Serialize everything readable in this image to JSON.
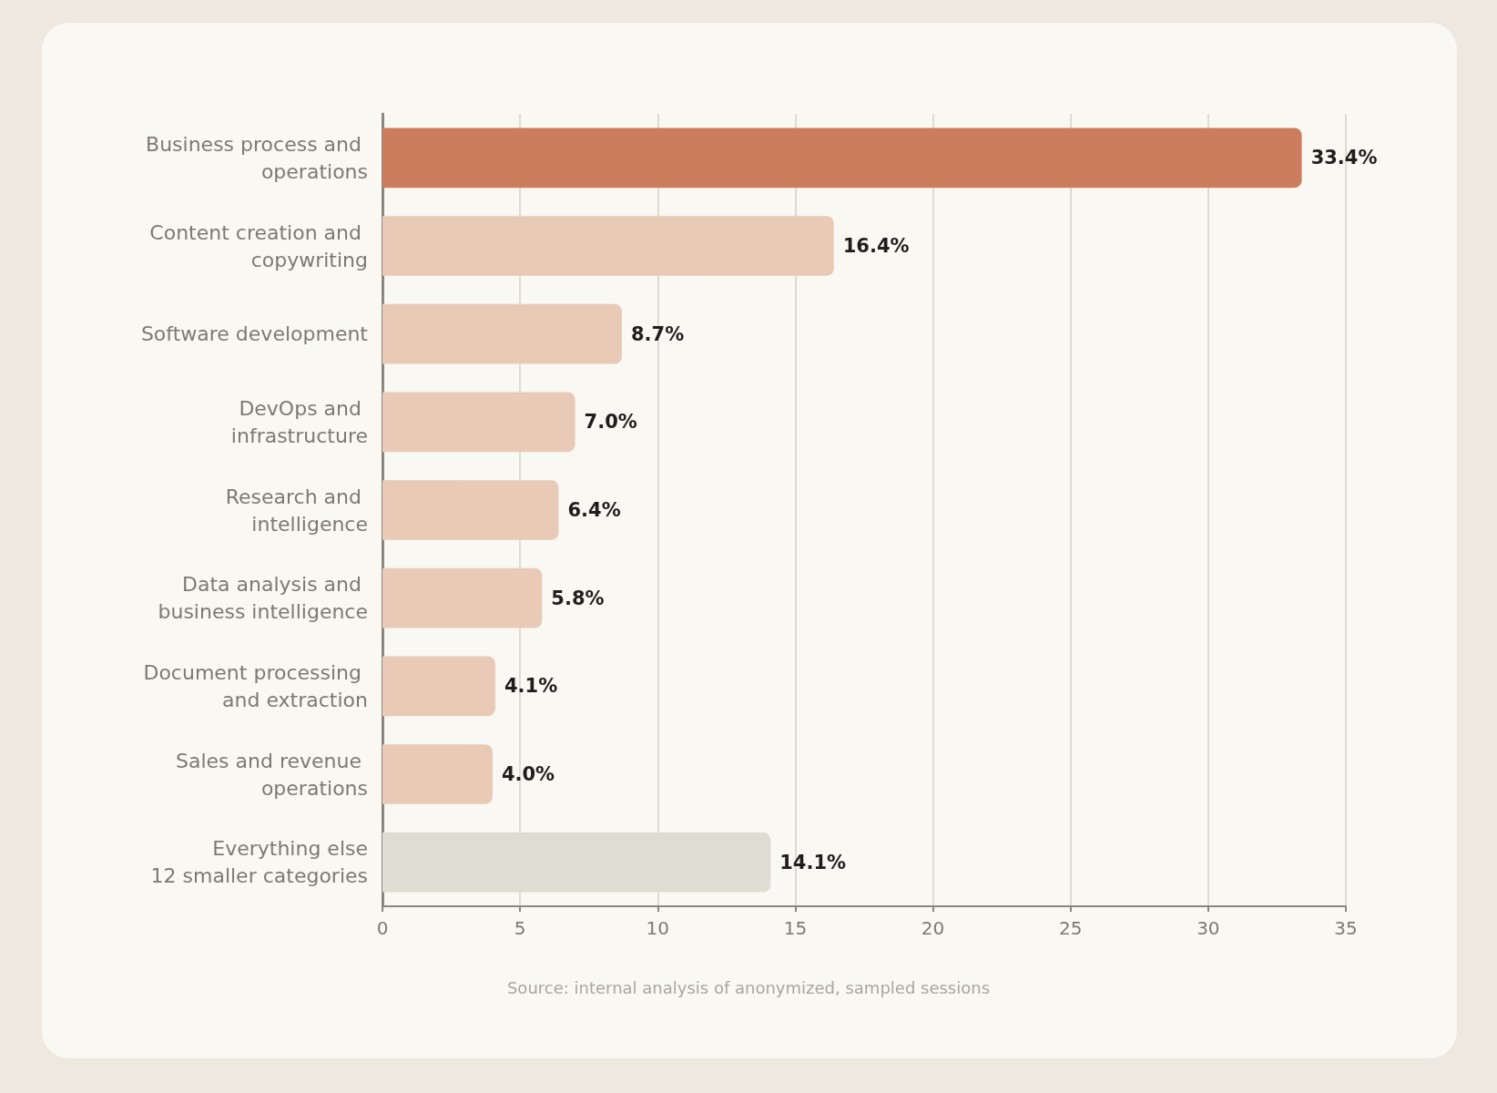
{
  "chart_data": {
    "type": "bar",
    "orientation": "horizontal",
    "categories": [
      "Business process and operations",
      "Content creation and copywriting",
      "Software development",
      "DevOps and infrastructure",
      "Research and intelligence",
      "Data analysis and business intelligence",
      "Document processing and extraction",
      "Sales and revenue operations",
      "Everything else\n12 smaller categories"
    ],
    "values": [
      33.4,
      16.4,
      8.7,
      7.0,
      6.4,
      5.8,
      4.1,
      4.0,
      14.1
    ],
    "colors": [
      "#cc7d5e",
      "#e8cab7",
      "#e8cab7",
      "#e8cab7",
      "#e8cab7",
      "#e8cab7",
      "#e8cab7",
      "#e8cab7",
      "#dfddd1"
    ],
    "value_labels": [
      "33.4%",
      "16.4%",
      "8.7%",
      "7.0%",
      "6.4%",
      "5.8%",
      "4.1%",
      "4.0%",
      "14.1%"
    ],
    "xlim": [
      0,
      35
    ],
    "xticks": [
      0,
      5,
      10,
      15,
      20,
      25,
      30,
      35
    ],
    "grid": "x",
    "annotations": [
      "Source: internal analysis of anonymized, sampled sessions"
    ]
  }
}
